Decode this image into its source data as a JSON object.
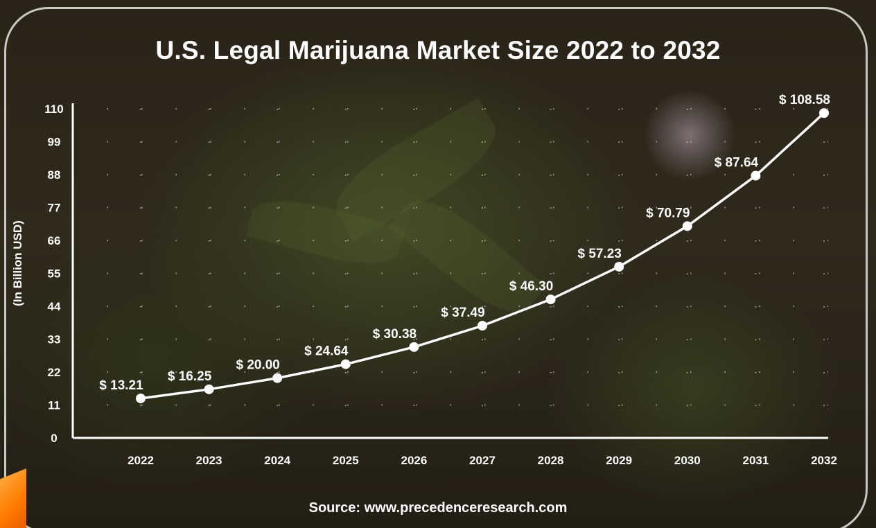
{
  "chart_data": {
    "type": "line",
    "title": "U.S. Legal Marijuana Market Size 2022 to 2032",
    "xlabel": "",
    "ylabel": "(In Billion USD)",
    "categories": [
      "2022",
      "2023",
      "2024",
      "2025",
      "2026",
      "2027",
      "2028",
      "2029",
      "2030",
      "2031",
      "2032"
    ],
    "series": [
      {
        "values": [
          13.21,
          16.25,
          20.0,
          24.64,
          30.38,
          37.49,
          46.3,
          57.23,
          70.79,
          87.64,
          108.58
        ]
      }
    ],
    "data_labels": [
      "$ 13.21",
      "$ 16.25",
      "$ 20.00",
      "$ 24.64",
      "$ 30.38",
      "$ 37.49",
      "$ 46.30",
      "$ 57.23",
      "$ 70.79",
      "$ 87.64",
      "$ 108.58"
    ],
    "ylim": [
      0,
      110
    ],
    "yticks": [
      0,
      11,
      22,
      33,
      44,
      55,
      66,
      77,
      88,
      99,
      110
    ],
    "grid": "dotted",
    "line_color": "#ffffff",
    "marker_color": "#ffffff"
  },
  "source": "Source: www.precedenceresearch.com",
  "colors": {
    "text": "#ffffff",
    "frame": "#c9c9c2",
    "accent_badge": "#ff7a00"
  }
}
